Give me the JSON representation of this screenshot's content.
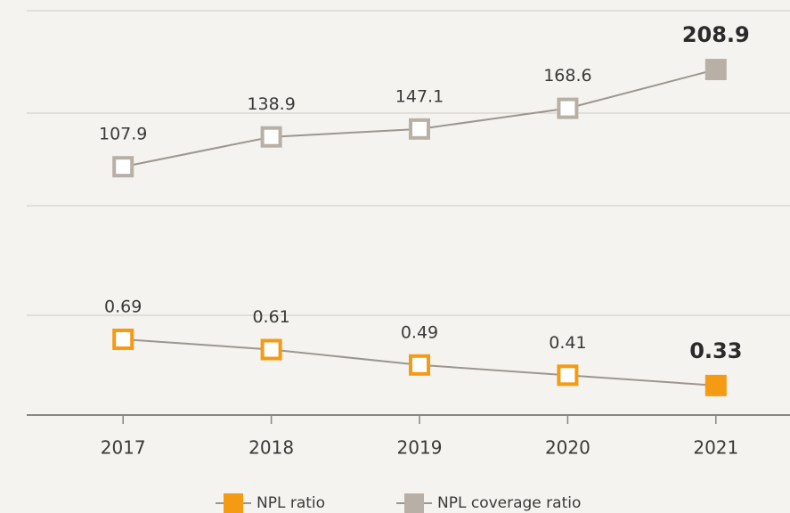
{
  "chart_data": {
    "type": "line",
    "categories": [
      "2017",
      "2018",
      "2019",
      "2020",
      "2021"
    ],
    "series": [
      {
        "name": "NPL ratio",
        "color": "#f59a13",
        "values": [
          0.69,
          0.61,
          0.49,
          0.41,
          0.33
        ]
      },
      {
        "name": "NPL coverage ratio",
        "color": "#b8b0a6",
        "axis": "y2",
        "values": [
          107.9,
          138.9,
          147.1,
          168.6,
          208.9
        ]
      }
    ],
    "ylim": [
      0.1,
      3.25
    ],
    "y2lim": [
      -150,
      270
    ],
    "grid": true,
    "legend": "bottom"
  }
}
